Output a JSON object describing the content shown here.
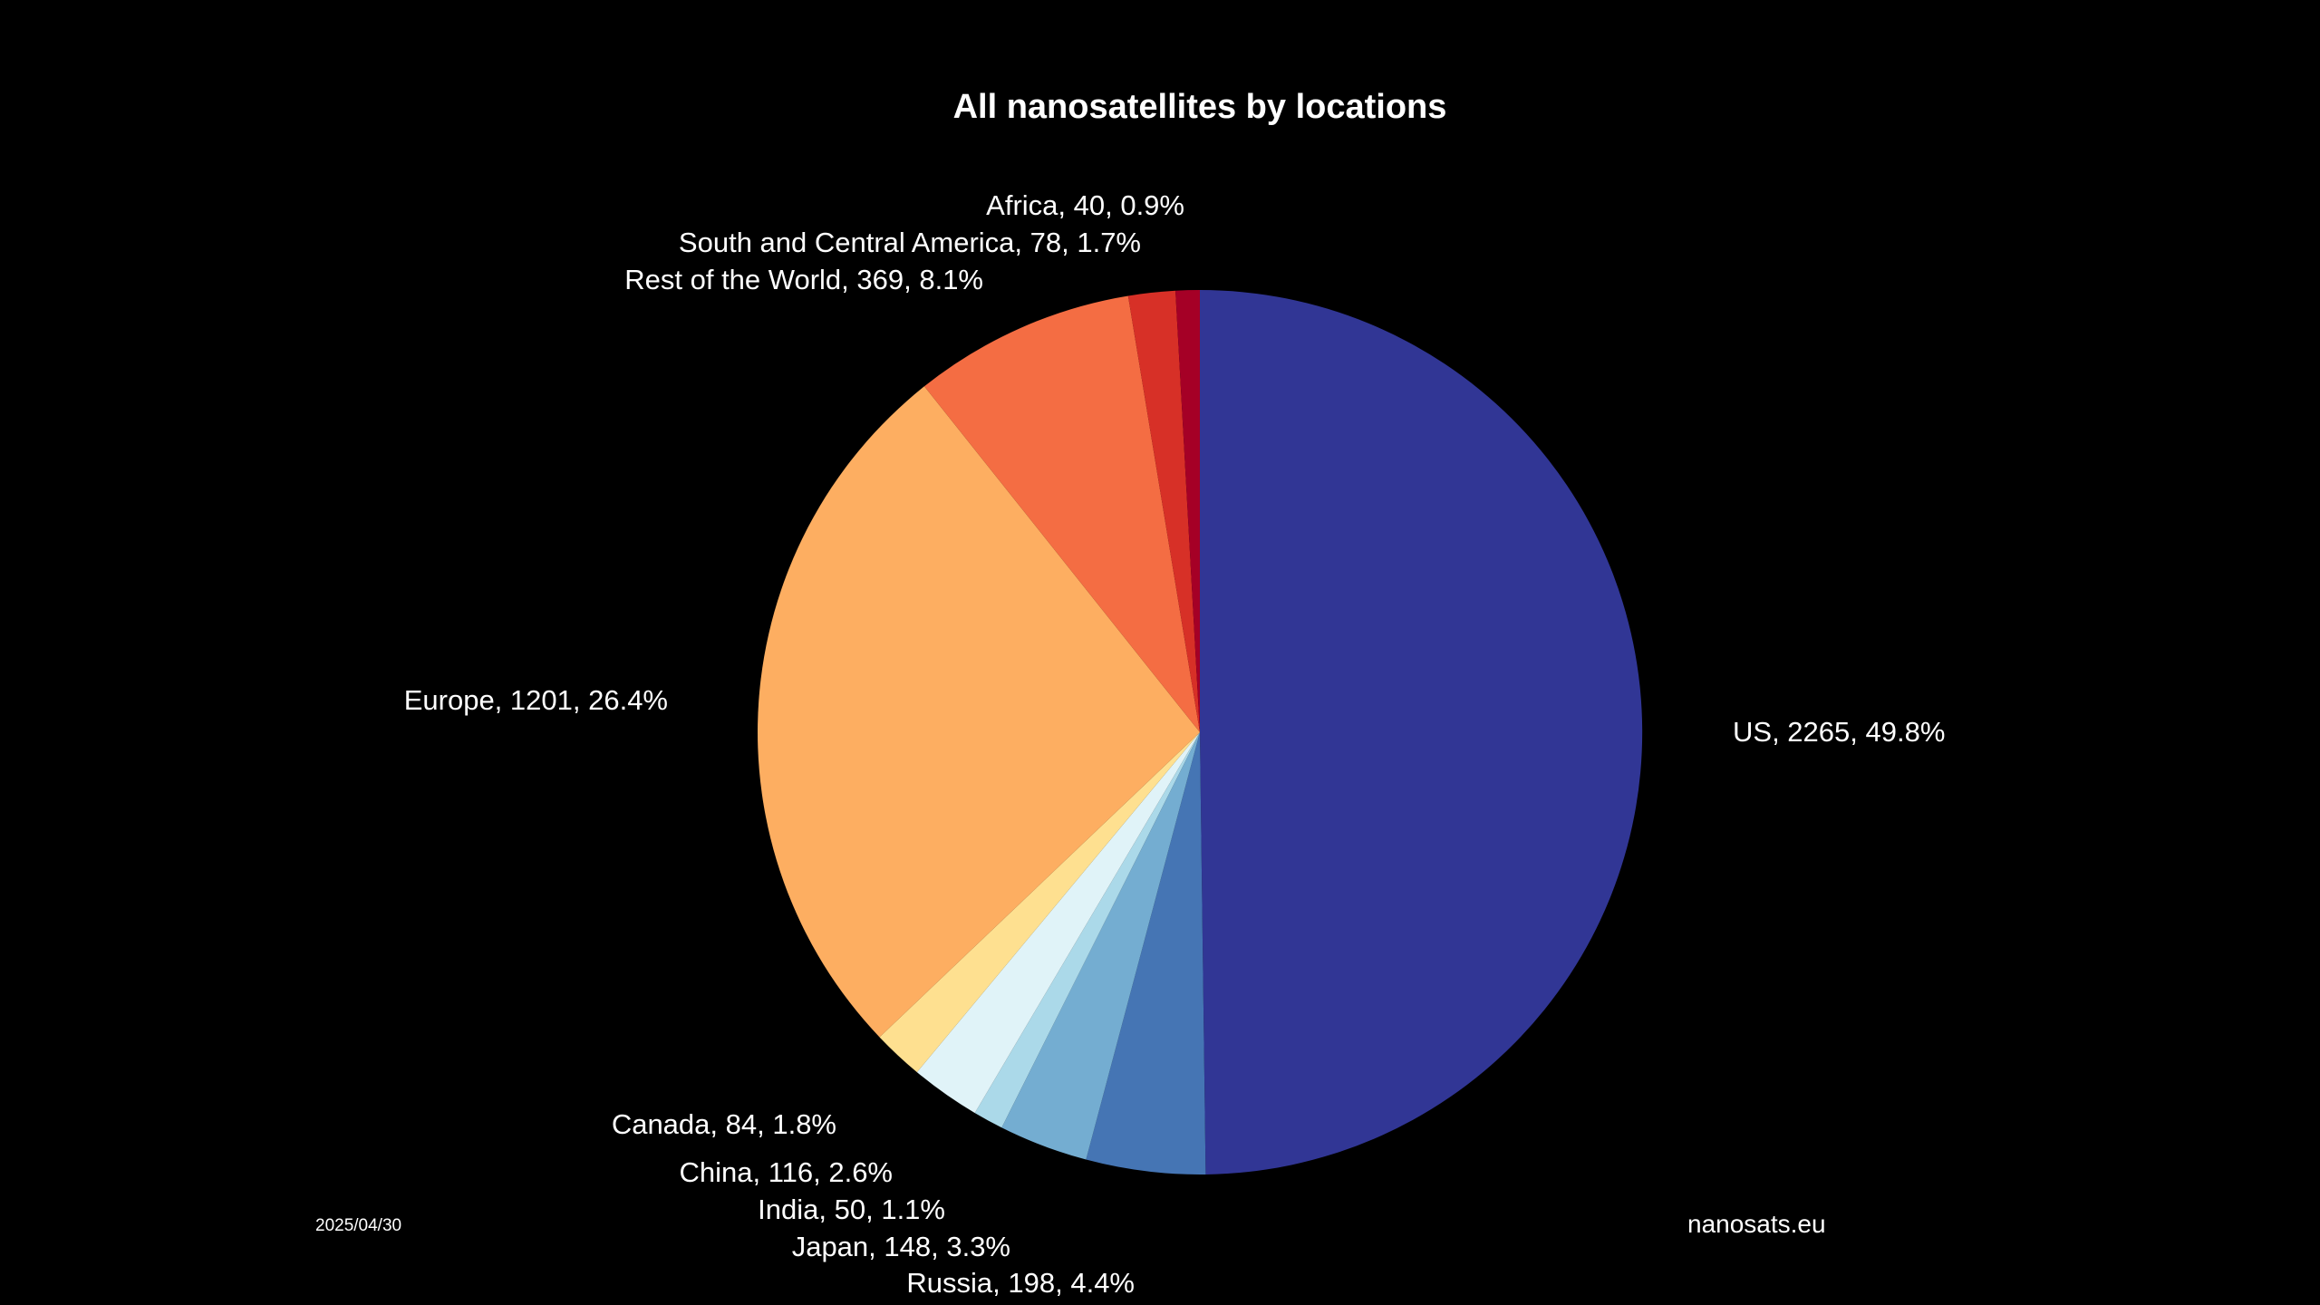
{
  "chart_data": {
    "type": "pie",
    "title": "All nanosatellites by locations",
    "start_angle_deg": 90,
    "direction": "clockwise",
    "slices": [
      {
        "name": "US",
        "value": 2265,
        "percent": 49.8,
        "label": "US, 2265, 49.8%",
        "color": "#313695"
      },
      {
        "name": "Russia",
        "value": 198,
        "percent": 4.4,
        "label": "Russia, 198, 4.4%",
        "color": "#4575b4"
      },
      {
        "name": "Japan",
        "value": 148,
        "percent": 3.3,
        "label": "Japan, 148, 3.3%",
        "color": "#74add1"
      },
      {
        "name": "India",
        "value": 50,
        "percent": 1.1,
        "label": "India, 50, 1.1%",
        "color": "#abd9e9"
      },
      {
        "name": "China",
        "value": 116,
        "percent": 2.6,
        "label": "China, 116, 2.6%",
        "color": "#e0f3f8"
      },
      {
        "name": "Canada",
        "value": 84,
        "percent": 1.8,
        "label": "Canada, 84, 1.8%",
        "color": "#fee090"
      },
      {
        "name": "Europe",
        "value": 1201,
        "percent": 26.4,
        "label": "Europe, 1201, 26.4%",
        "color": "#fdae61"
      },
      {
        "name": "Rest of the World",
        "value": 369,
        "percent": 8.1,
        "label": "Rest of the World, 369, 8.1%",
        "color": "#f46d43"
      },
      {
        "name": "South and Central America",
        "value": 78,
        "percent": 1.7,
        "label": "South and Central America, 78, 1.7%",
        "color": "#d73027"
      },
      {
        "name": "Africa",
        "value": 40,
        "percent": 0.9,
        "label": "Africa, 40, 0.9%",
        "color": "#a50026"
      }
    ]
  },
  "footer": {
    "date": "2025/04/30",
    "source": "nanosats.eu"
  },
  "colors": {
    "background": "#000000",
    "text": "#ffffff"
  }
}
